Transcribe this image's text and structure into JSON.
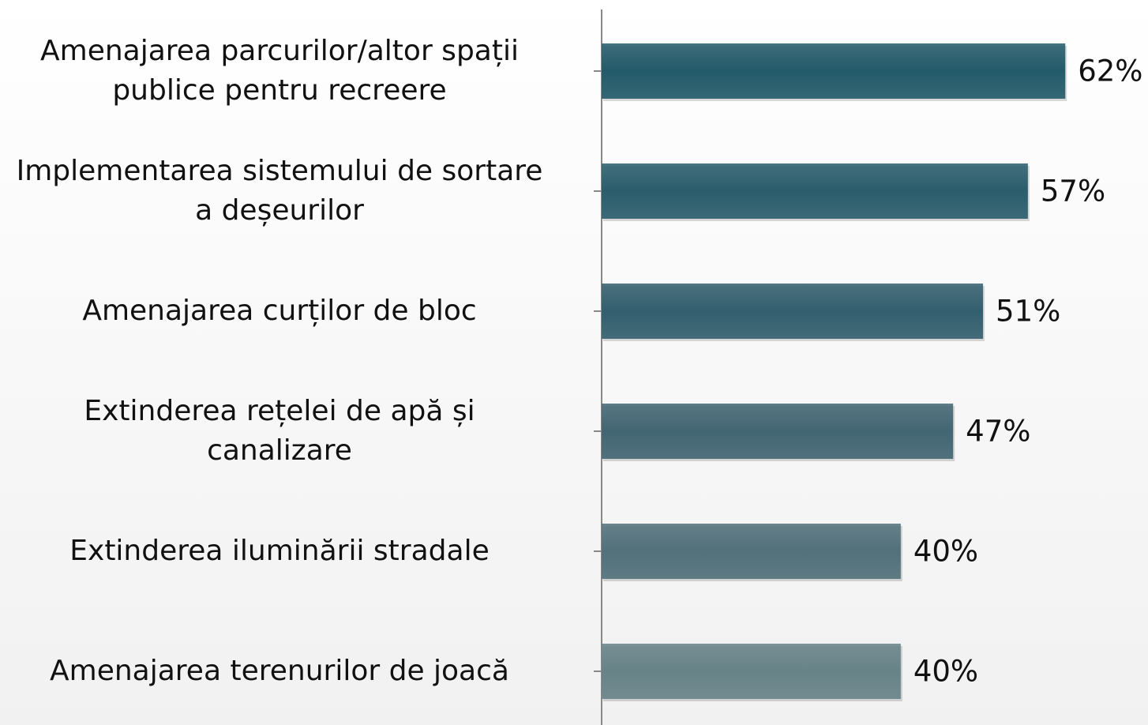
{
  "chart_data": {
    "type": "bar",
    "orientation": "horizontal",
    "categories": [
      "Amenajarea parcurilor/altor spații\npublice pentru recreere",
      "Implementarea sistemului de sortare\na deșeurilor",
      "Amenajarea curților de bloc",
      "Extinderea rețelei de apă și\ncanalizare",
      "Extinderea iluminării stradale",
      "Amenajarea terenurilor de joacă"
    ],
    "values": [
      62,
      57,
      51,
      47,
      40,
      40
    ],
    "value_labels": [
      "62%",
      "57%",
      "51%",
      "47%",
      "40%",
      "40%"
    ],
    "colors": [
      "#235a6a",
      "#2a5d6c",
      "#335f6e",
      "#426673",
      "#52717b",
      "#678388"
    ],
    "xlim": [
      0,
      70
    ]
  }
}
